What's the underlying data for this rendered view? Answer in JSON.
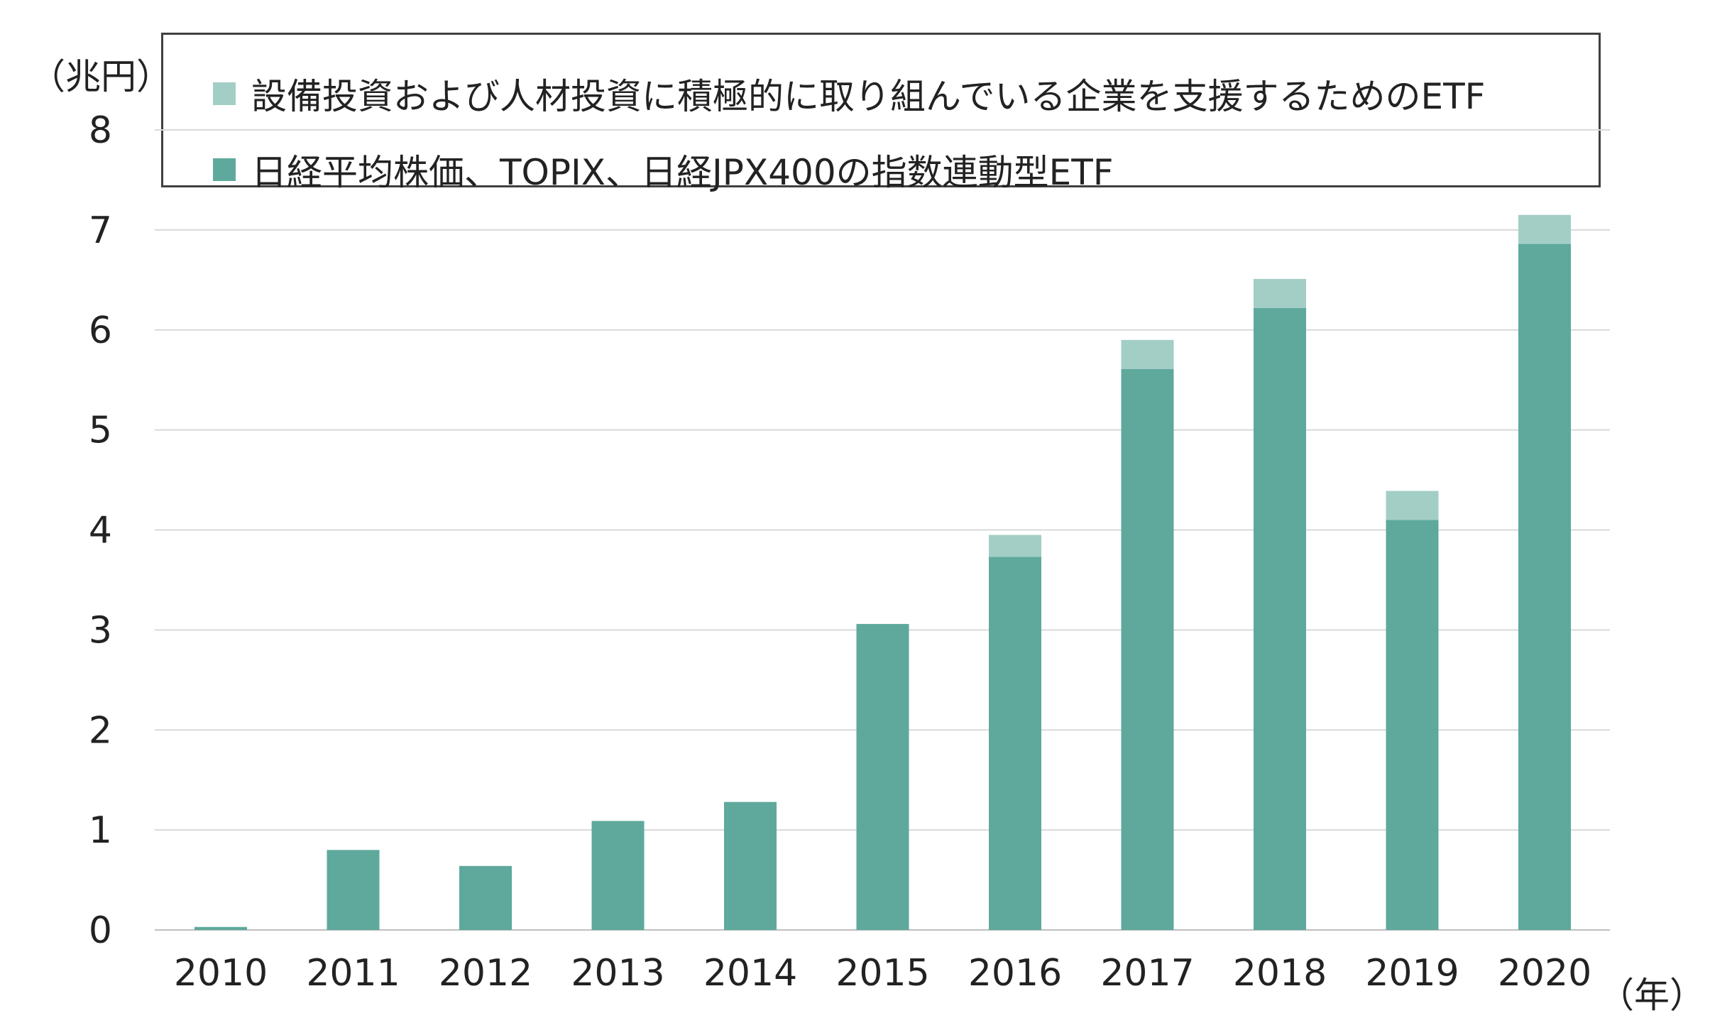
{
  "chart_data": {
    "type": "bar",
    "stacked": true,
    "y_unit": "（兆円）",
    "x_unit": "（年）",
    "categories": [
      "2010",
      "2011",
      "2012",
      "2013",
      "2014",
      "2015",
      "2016",
      "2017",
      "2018",
      "2019",
      "2020"
    ],
    "series": [
      {
        "name": "日経平均株価、TOPIX、日経JPX400の指数連動型ETF",
        "color": "#5ea99c",
        "values": [
          0.03,
          0.8,
          0.64,
          1.09,
          1.28,
          3.06,
          3.73,
          5.61,
          6.22,
          4.1,
          6.86
        ]
      },
      {
        "name": "設備投資および人材投資に積極的に取り組んでいる企業を支援するためのETF",
        "color": "#a2cec6",
        "values": [
          0,
          0,
          0,
          0,
          0,
          0,
          0.22,
          0.29,
          0.29,
          0.29,
          0.29
        ]
      }
    ],
    "ylim": [
      0,
      8
    ],
    "yticks": [
      "0",
      "1",
      "2",
      "3",
      "4",
      "5",
      "6",
      "7",
      "8"
    ],
    "grid": true,
    "legend_position": "top"
  }
}
